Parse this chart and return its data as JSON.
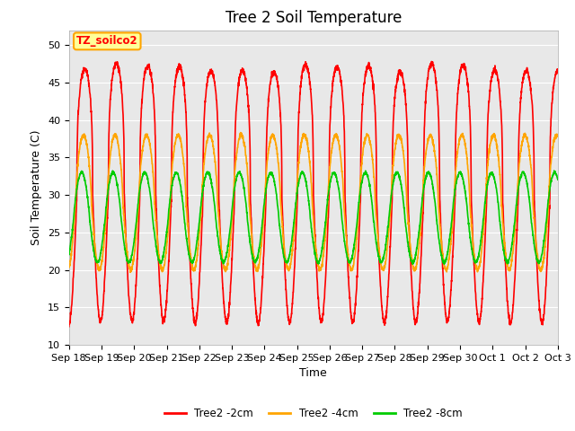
{
  "title": "Tree 2 Soil Temperature",
  "xlabel": "Time",
  "ylabel": "Soil Temperature (C)",
  "ylim": [
    10,
    52
  ],
  "yticks": [
    10,
    15,
    20,
    25,
    30,
    35,
    40,
    45,
    50
  ],
  "x_labels": [
    "Sep 18",
    "Sep 19",
    "Sep 20",
    "Sep 21",
    "Sep 22",
    "Sep 23",
    "Sep 24",
    "Sep 25",
    "Sep 26",
    "Sep 27",
    "Sep 28",
    "Sep 29",
    "Sep 30",
    "Oct 1",
    "Oct 2",
    "Oct 3"
  ],
  "color_2cm": "#FF0000",
  "color_4cm": "#FFA500",
  "color_8cm": "#00CC00",
  "legend_label_2cm": "Tree2 -2cm",
  "legend_label_4cm": "Tree2 -4cm",
  "legend_label_8cm": "Tree2 -8cm",
  "annotation_text": "TZ_soilco2",
  "annotation_bg": "#FFFF99",
  "annotation_border": "#FFA500",
  "bg_color": "#E8E8E8",
  "line_width": 1.2,
  "title_fontsize": 12,
  "tick_fontsize": 8
}
